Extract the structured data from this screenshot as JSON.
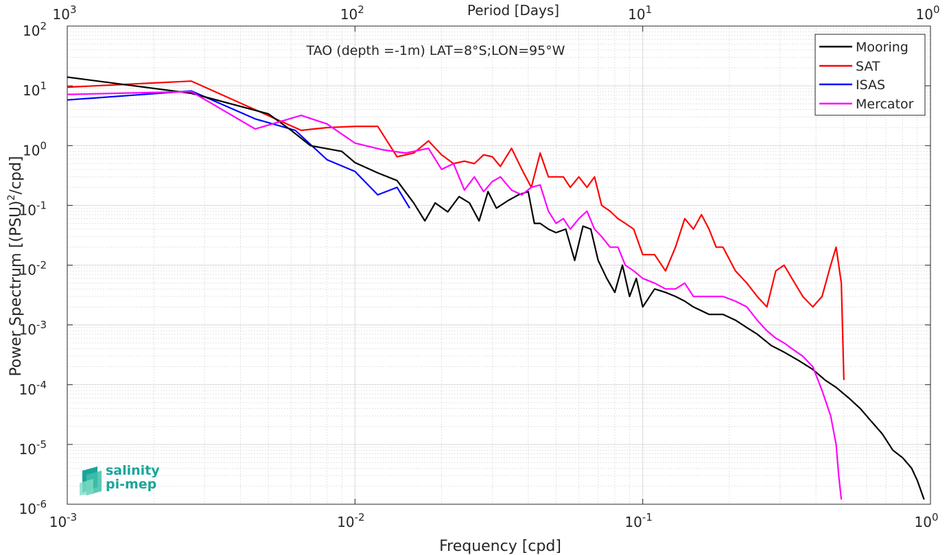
{
  "chart_data": {
    "type": "line",
    "title": "TAO (depth =-1m) LAT=8°S;LON=95°W",
    "xlabel": "Frequency [cpd]",
    "ylabel_main": "Power Spectrum [(PSU)",
    "ylabel_sup": "2",
    "ylabel_tail": "/cpd]",
    "top_axis_label": "Period [Days]",
    "xscale": "log",
    "yscale": "log",
    "xlim": [
      0.001,
      1
    ],
    "ylim": [
      1e-06,
      100
    ],
    "grid": true,
    "legend_position": "top-right",
    "x_ticks": [
      {
        "base": "10",
        "exp": "-3",
        "v": 0.001
      },
      {
        "base": "10",
        "exp": "-2",
        "v": 0.01
      },
      {
        "base": "10",
        "exp": "-1",
        "v": 0.1
      },
      {
        "base": "10",
        "exp": "0",
        "v": 1
      }
    ],
    "top_ticks": [
      {
        "base": "10",
        "exp": "3",
        "v": 0.001
      },
      {
        "base": "10",
        "exp": "2",
        "v": 0.01
      },
      {
        "base": "10",
        "exp": "1",
        "v": 0.1
      },
      {
        "base": "10",
        "exp": "0",
        "v": 1
      }
    ],
    "y_ticks": [
      {
        "base": "10",
        "exp": "2",
        "v": 100
      },
      {
        "base": "10",
        "exp": "1",
        "v": 10
      },
      {
        "base": "10",
        "exp": "0",
        "v": 1
      },
      {
        "base": "10",
        "exp": "-1",
        "v": 0.1
      },
      {
        "base": "10",
        "exp": "-2",
        "v": 0.01
      },
      {
        "base": "10",
        "exp": "-3",
        "v": 0.001
      },
      {
        "base": "10",
        "exp": "-4",
        "v": 0.0001
      },
      {
        "base": "10",
        "exp": "-5",
        "v": 1e-05
      },
      {
        "base": "10",
        "exp": "-6",
        "v": 1e-06
      }
    ],
    "series": [
      {
        "name": "Mooring",
        "color": "#000000",
        "x": [
          0.001,
          0.0027,
          0.005,
          0.006,
          0.007,
          0.009,
          0.01,
          0.012,
          0.014,
          0.016,
          0.0175,
          0.019,
          0.021,
          0.023,
          0.025,
          0.027,
          0.029,
          0.031,
          0.034,
          0.037,
          0.04,
          0.042,
          0.044,
          0.047,
          0.05,
          0.054,
          0.058,
          0.062,
          0.066,
          0.07,
          0.075,
          0.08,
          0.085,
          0.09,
          0.095,
          0.1,
          0.11,
          0.12,
          0.13,
          0.14,
          0.15,
          0.17,
          0.19,
          0.21,
          0.23,
          0.25,
          0.28,
          0.31,
          0.35,
          0.39,
          0.43,
          0.47,
          0.52,
          0.57,
          0.62,
          0.68,
          0.74,
          0.8,
          0.86,
          0.9,
          0.95
        ],
        "y": [
          14,
          7.5,
          3.4,
          1.8,
          1.0,
          0.8,
          0.52,
          0.35,
          0.26,
          0.11,
          0.055,
          0.11,
          0.078,
          0.14,
          0.11,
          0.055,
          0.17,
          0.09,
          0.12,
          0.15,
          0.17,
          0.05,
          0.05,
          0.04,
          0.035,
          0.04,
          0.012,
          0.045,
          0.04,
          0.012,
          0.006,
          0.0035,
          0.01,
          0.003,
          0.006,
          0.002,
          0.004,
          0.0035,
          0.003,
          0.0025,
          0.002,
          0.0015,
          0.0015,
          0.0012,
          0.0009,
          0.0007,
          0.00045,
          0.00035,
          0.00025,
          0.00018,
          0.00012,
          9e-05,
          6e-05,
          4e-05,
          2.5e-05,
          1.5e-05,
          8e-06,
          6e-06,
          4e-06,
          2.5e-06,
          1.2e-06
        ]
      },
      {
        "name": "SAT",
        "color": "#ff0000",
        "x": [
          0.001,
          0.0027,
          0.0065,
          0.008,
          0.01,
          0.012,
          0.014,
          0.016,
          0.018,
          0.02,
          0.022,
          0.024,
          0.026,
          0.028,
          0.03,
          0.032,
          0.035,
          0.038,
          0.041,
          0.044,
          0.047,
          0.05,
          0.053,
          0.056,
          0.06,
          0.064,
          0.068,
          0.072,
          0.077,
          0.082,
          0.087,
          0.093,
          0.1,
          0.11,
          0.12,
          0.13,
          0.14,
          0.15,
          0.16,
          0.17,
          0.18,
          0.19,
          0.21,
          0.23,
          0.25,
          0.27,
          0.29,
          0.31,
          0.33,
          0.36,
          0.39,
          0.42,
          0.45,
          0.47,
          0.49,
          0.5
        ],
        "y": [
          9.5,
          12,
          1.8,
          2.0,
          2.1,
          2.1,
          0.65,
          0.75,
          1.2,
          0.7,
          0.5,
          0.55,
          0.5,
          0.7,
          0.65,
          0.45,
          0.9,
          0.4,
          0.2,
          0.75,
          0.3,
          0.3,
          0.3,
          0.2,
          0.3,
          0.2,
          0.3,
          0.1,
          0.08,
          0.06,
          0.05,
          0.04,
          0.015,
          0.015,
          0.008,
          0.02,
          0.06,
          0.04,
          0.07,
          0.04,
          0.02,
          0.02,
          0.008,
          0.005,
          0.003,
          0.002,
          0.008,
          0.01,
          0.006,
          0.003,
          0.002,
          0.003,
          0.01,
          0.02,
          0.005,
          0.00012
        ]
      },
      {
        "name": "ISAS",
        "color": "#0000ff",
        "x": [
          0.001,
          0.0027,
          0.0045,
          0.0062,
          0.008,
          0.01,
          0.012,
          0.014,
          0.0155
        ],
        "y": [
          5.8,
          8.2,
          2.8,
          1.8,
          0.58,
          0.37,
          0.15,
          0.2,
          0.09
        ]
      },
      {
        "name": "Mercator",
        "color": "#ff00ff",
        "x": [
          0.001,
          0.0027,
          0.0045,
          0.0065,
          0.008,
          0.01,
          0.0125,
          0.015,
          0.018,
          0.02,
          0.022,
          0.024,
          0.026,
          0.028,
          0.03,
          0.032,
          0.035,
          0.038,
          0.041,
          0.044,
          0.047,
          0.05,
          0.053,
          0.056,
          0.06,
          0.064,
          0.068,
          0.072,
          0.077,
          0.082,
          0.087,
          0.093,
          0.1,
          0.11,
          0.12,
          0.13,
          0.14,
          0.15,
          0.17,
          0.19,
          0.21,
          0.23,
          0.25,
          0.27,
          0.29,
          0.31,
          0.33,
          0.36,
          0.39,
          0.42,
          0.45,
          0.47,
          0.48,
          0.49
        ],
        "y": [
          7.2,
          8.0,
          1.9,
          3.2,
          2.3,
          1.1,
          0.85,
          0.75,
          0.9,
          0.4,
          0.5,
          0.18,
          0.3,
          0.17,
          0.25,
          0.3,
          0.18,
          0.15,
          0.2,
          0.22,
          0.08,
          0.05,
          0.06,
          0.04,
          0.06,
          0.08,
          0.04,
          0.03,
          0.02,
          0.02,
          0.01,
          0.008,
          0.006,
          0.005,
          0.004,
          0.004,
          0.005,
          0.003,
          0.003,
          0.003,
          0.0025,
          0.002,
          0.0012,
          0.0008,
          0.0006,
          0.0005,
          0.0004,
          0.0003,
          0.0002,
          8e-05,
          3e-05,
          1e-05,
          3e-06,
          1.2e-06
        ]
      }
    ]
  },
  "logo": {
    "line1": "salinity",
    "line2": "pi-mep"
  }
}
